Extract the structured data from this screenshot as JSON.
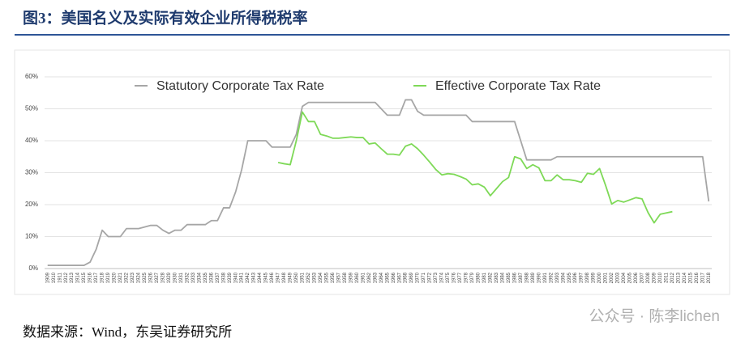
{
  "title": "图3：美国名义及实际有效企业所得税税率",
  "source": "数据来源：Wind，东吴证券研究所",
  "watermark": "公众号 · 陈李lichen",
  "chart_data": {
    "type": "line",
    "categories": [
      "1909",
      "1910",
      "1911",
      "1912",
      "1913",
      "1914",
      "1915",
      "1916",
      "1917",
      "1918",
      "1919",
      "1920",
      "1921",
      "1922",
      "1923",
      "1924",
      "1925",
      "1926",
      "1927",
      "1928",
      "1929",
      "1930",
      "1931",
      "1932",
      "1933",
      "1934",
      "1935",
      "1936",
      "1937",
      "1938",
      "1939",
      "1940",
      "1941",
      "1942",
      "1943",
      "1944",
      "1945",
      "1946",
      "1947",
      "1948",
      "1949",
      "1950",
      "1951",
      "1952",
      "1953",
      "1954",
      "1955",
      "1956",
      "1957",
      "1958",
      "1959",
      "1960",
      "1961",
      "1962",
      "1963",
      "1964",
      "1965",
      "1966",
      "1967",
      "1968",
      "1969",
      "1970",
      "1971",
      "1972",
      "1973",
      "1974",
      "1975",
      "1976",
      "1977",
      "1978",
      "1979",
      "1980",
      "1981",
      "1982",
      "1983",
      "1984",
      "1985",
      "1986",
      "1987",
      "1988",
      "1989",
      "1990",
      "1991",
      "1992",
      "1993",
      "1994",
      "1995",
      "1996",
      "1997",
      "1998",
      "1999",
      "2000",
      "2001",
      "2002",
      "2003",
      "2004",
      "2005",
      "2006",
      "2007",
      "2008",
      "2009",
      "2010",
      "2011",
      "2012",
      "2013",
      "2014",
      "2015",
      "2016",
      "2017",
      "2018"
    ],
    "series": [
      {
        "name": "Statutory Corporate Tax Rate",
        "color": "#a6a6a6",
        "values": [
          1,
          1,
          1,
          1,
          1,
          1,
          1,
          2,
          6,
          12,
          10,
          10,
          10,
          12.5,
          12.5,
          12.5,
          13,
          13.5,
          13.5,
          12,
          11,
          12,
          12,
          13.75,
          13.75,
          13.75,
          13.75,
          15,
          15,
          19,
          19,
          24,
          31,
          40,
          40,
          40,
          40,
          38,
          38,
          38,
          38,
          42,
          50.75,
          52,
          52,
          52,
          52,
          52,
          52,
          52,
          52,
          52,
          52,
          52,
          52,
          50,
          48,
          48,
          48,
          52.8,
          52.8,
          49.2,
          48,
          48,
          48,
          48,
          48,
          48,
          48,
          48,
          46,
          46,
          46,
          46,
          46,
          46,
          46,
          46,
          40,
          34,
          34,
          34,
          34,
          34,
          35,
          35,
          35,
          35,
          35,
          35,
          35,
          35,
          35,
          35,
          35,
          35,
          35,
          35,
          35,
          35,
          35,
          35,
          35,
          35,
          35,
          35,
          35,
          35,
          35,
          21
        ]
      },
      {
        "name": "Effective Corporate Tax Rate",
        "color": "#7ed957",
        "values": [
          null,
          null,
          null,
          null,
          null,
          null,
          null,
          null,
          null,
          null,
          null,
          null,
          null,
          null,
          null,
          null,
          null,
          null,
          null,
          null,
          null,
          null,
          null,
          null,
          null,
          null,
          null,
          null,
          null,
          null,
          null,
          null,
          null,
          null,
          null,
          null,
          null,
          null,
          33.2,
          32.8,
          32.5,
          40,
          49,
          46,
          46,
          42,
          41.5,
          40.8,
          40.8,
          41,
          41.2,
          41,
          41,
          39,
          39.3,
          37.5,
          35.8,
          35.8,
          35.5,
          38.3,
          39,
          37.5,
          35.5,
          33.3,
          31,
          29.3,
          29.7,
          29.5,
          28.8,
          28,
          26.2,
          26.5,
          25.5,
          22.8,
          25,
          27.2,
          28.5,
          35,
          34.3,
          31.3,
          32.5,
          31.5,
          27.5,
          27.5,
          29.3,
          27.8,
          27.8,
          27.5,
          27,
          29.8,
          29.5,
          31.3,
          26,
          20.2,
          21.3,
          20.8,
          21.5,
          22.2,
          21.8,
          17.5,
          14.3,
          17,
          17.4,
          17.8,
          null,
          null,
          null,
          null,
          null,
          null
        ]
      }
    ],
    "ylim": [
      0,
      60
    ],
    "yticks": [
      {
        "value": 0,
        "label": "0%"
      },
      {
        "value": 10,
        "label": "10%"
      },
      {
        "value": 20,
        "label": "20%"
      },
      {
        "value": 30,
        "label": "30%"
      },
      {
        "value": 40,
        "label": "40%"
      },
      {
        "value": 50,
        "label": "50%"
      },
      {
        "value": 60,
        "label": "60%"
      }
    ],
    "grid": true
  }
}
